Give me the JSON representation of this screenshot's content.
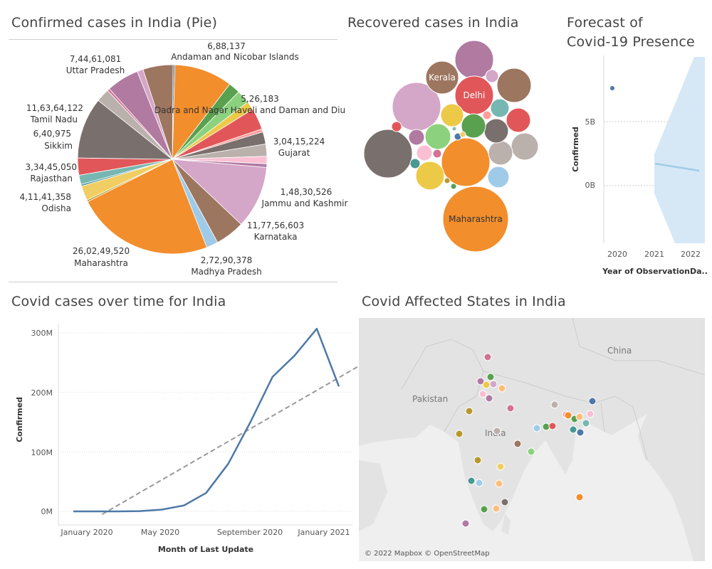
{
  "pie": {
    "title": "Confirmed cases in India (Pie)",
    "labels": [
      {
        "state": "Andaman and Nicobar Islands",
        "value": "6,88,137"
      },
      {
        "state": "Dadra and Nagar Haveli and Daman and Diu",
        "value": "5,26,183"
      },
      {
        "state": "Gujarat",
        "value": "3,04,15,224"
      },
      {
        "state": "Jammu and Kashmir",
        "value": "1,48,30,526"
      },
      {
        "state": "Karnataka",
        "value": "11,77,56,603"
      },
      {
        "state": "Madhya Pradesh",
        "value": "2,72,90,378"
      },
      {
        "state": "Maharashtra",
        "value": "26,02,49,520"
      },
      {
        "state": "Odisha",
        "value": "4,11,41,358"
      },
      {
        "state": "Rajasthan",
        "value": "3,34,45,050"
      },
      {
        "state": "Sikkim",
        "value": "6,40,975"
      },
      {
        "state": "Tamil Nadu",
        "value": "11,63,64,122"
      },
      {
        "state": "Uttar Pradesh",
        "value": "7,44,61,081"
      }
    ]
  },
  "bubbles": {
    "title": "Recovered cases in India",
    "labels": [
      "Kerala",
      "Delhi",
      "Maharashtra"
    ]
  },
  "forecast": {
    "title_line1": "Forecast of",
    "title_line2": "Covid-19 Presence",
    "ylabel": "Confirmed",
    "xlabel": "Year of ObservationDa..",
    "yticks": [
      "5B",
      "0B"
    ],
    "xticks": [
      "2020",
      "2021",
      "2022"
    ]
  },
  "line": {
    "title": "Covid cases over time for India",
    "ylabel": "Confirmed",
    "xlabel": "Month of Last Update",
    "yticks": [
      "300M",
      "200M",
      "100M",
      "0M"
    ],
    "xticks": [
      "January 2020",
      "May 2020",
      "September 2020",
      "January 2021"
    ]
  },
  "map": {
    "title": "Covid Affected States in India",
    "labels": [
      "China",
      "Pakistan",
      "India"
    ],
    "credit": "© 2022 Mapbox © OpenStreetMap"
  },
  "colors": {
    "orange": "#f28e2b",
    "blue": "#4e79a7",
    "green": "#59a14f",
    "red": "#e15759",
    "pink": "#d4a6c8",
    "gray": "#79706e",
    "brown": "#9d7660",
    "teal": "#76b7b2",
    "yellow": "#edc948",
    "lightblue": "#a0cbe8"
  },
  "chart_data": [
    {
      "type": "pie",
      "title": "Confirmed cases in India (Pie)",
      "slices": [
        {
          "name": "Andaman and Nicobar Islands",
          "value": 688137
        },
        {
          "name": "Dadra and Nagar Haveli and Daman and Diu",
          "value": 526183
        },
        {
          "name": "Gujarat",
          "value": 30415224
        },
        {
          "name": "Jammu and Kashmir",
          "value": 14830526
        },
        {
          "name": "Karnataka",
          "value": 117756603
        },
        {
          "name": "Madhya Pradesh",
          "value": 27290378
        },
        {
          "name": "Maharashtra",
          "value": 260249520
        },
        {
          "name": "Odisha",
          "value": 41141358
        },
        {
          "name": "Rajasthan",
          "value": 33445050
        },
        {
          "name": "Sikkim",
          "value": 640975
        },
        {
          "name": "Tamil Nadu",
          "value": 116364122
        },
        {
          "name": "Uttar Pradesh",
          "value": 74461081
        }
      ]
    },
    {
      "type": "scatter",
      "title": "Recovered cases in India",
      "labeled_bubbles": [
        "Kerala",
        "Delhi",
        "Maharashtra"
      ]
    },
    {
      "type": "line",
      "title": "Forecast of Covid-19 Presence",
      "ylabel": "Confirmed",
      "xlabel": "Year of ObservationDa..",
      "actual": [
        {
          "x": 2020,
          "y": 7.4
        }
      ],
      "forecast": [
        {
          "x": 2021,
          "y": 1.6
        },
        {
          "x": 2022,
          "y": 1.0
        }
      ],
      "band": [
        {
          "x": 2021,
          "low": -2.5,
          "high": 3.5
        },
        {
          "x": 2022.2,
          "low": -8,
          "high": 11
        }
      ],
      "unit": "B"
    },
    {
      "type": "line",
      "title": "Covid cases over time for India",
      "xlabel": "Month of Last Update",
      "ylabel": "Confirmed",
      "ylim": [
        0,
        300
      ],
      "unit": "M",
      "x": [
        "Jan 2020",
        "Feb 2020",
        "Mar 2020",
        "Apr 2020",
        "May 2020",
        "Jun 2020",
        "Jul 2020",
        "Aug 2020",
        "Sep 2020",
        "Oct 2020",
        "Nov 2020",
        "Dec 2020",
        "Jan 2021",
        "Feb 2021"
      ],
      "series": [
        {
          "values": [
            0,
            0,
            0,
            0.5,
            3,
            10,
            31,
            80,
            150,
            226,
            262,
            307,
            210,
            null
          ]
        }
      ],
      "trend": {
        "start": [
          1.3,
          -5
        ],
        "end": [
          13.7,
          278
        ]
      }
    },
    {
      "type": "scatter",
      "title": "Covid Affected States in India",
      "note": "state markers on map"
    }
  ]
}
